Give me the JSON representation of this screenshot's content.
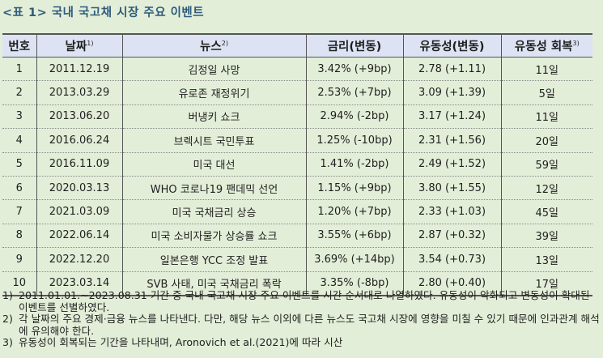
{
  "title": "<표 1> 국내 국고채 시장 주요 이벤트",
  "table": {
    "headers": [
      {
        "label": "번호",
        "sup": ""
      },
      {
        "label": "날짜",
        "sup": "1)"
      },
      {
        "label": "뉴스",
        "sup": "2)"
      },
      {
        "label": "금리(변동)",
        "sup": ""
      },
      {
        "label": "유동성(변동)",
        "sup": ""
      },
      {
        "label": "유동성 회복",
        "sup": "3)"
      }
    ],
    "rows": [
      {
        "no": "1",
        "date": "2011.12.19",
        "news": "김정일 사망",
        "rate": "3.42% (+9bp)",
        "liquidity": "2.78 (+1.11)",
        "recovery": "11일"
      },
      {
        "no": "2",
        "date": "2013.03.29",
        "news": "유로존 재정위기",
        "rate": "2.53% (+7bp)",
        "liquidity": "3.09 (+1.39)",
        "recovery": "5일"
      },
      {
        "no": "3",
        "date": "2013.06.20",
        "news": "버냉키 쇼크",
        "rate": "2.94% (-2bp)",
        "liquidity": "3.17 (+1.24)",
        "recovery": "11일"
      },
      {
        "no": "4",
        "date": "2016.06.24",
        "news": "브렉시트 국민투표",
        "rate": "1.25% (-10bp)",
        "liquidity": "2.31 (+1.56)",
        "recovery": "20일"
      },
      {
        "no": "5",
        "date": "2016.11.09",
        "news": "미국 대선",
        "rate": "1.41% (-2bp)",
        "liquidity": "2.49 (+1.52)",
        "recovery": "59일"
      },
      {
        "no": "6",
        "date": "2020.03.13",
        "news": "WHO 코로나19 팬데믹 선언",
        "rate": "1.15% (+9bp)",
        "liquidity": "3.80 (+1.55)",
        "recovery": "12일"
      },
      {
        "no": "7",
        "date": "2021.03.09",
        "news": "미국 국채금리 상승",
        "rate": "1.20% (+7bp)",
        "liquidity": "2.33 (+1.03)",
        "recovery": "45일"
      },
      {
        "no": "8",
        "date": "2022.06.14",
        "news": "미국 소비자물가 상승률 쇼크",
        "rate": "3.55% (+6bp)",
        "liquidity": "2.87 (+0.32)",
        "recovery": "39일"
      },
      {
        "no": "9",
        "date": "2022.12.20",
        "news": "일본은행 YCC 조정 발표",
        "rate": "3.69% (+14bp)",
        "liquidity": "3.54 (+0.73)",
        "recovery": "13일"
      },
      {
        "no": "10",
        "date": "2023.03.14",
        "news": "SVB 사태, 미국 국채금리 폭락",
        "rate": "3.35% (-8bp)",
        "liquidity": "2.80 (+0.40)",
        "recovery": "17일"
      }
    ]
  },
  "notes": [
    {
      "num": "1)",
      "text": "2011.01.01.~2023.08.31 기간 중 국내 국고채 시장 주요 이벤트를 시간 순서대로 나열하였다. 유동성이 악화되고 변동성이 확대된 이벤트를 선별하였다."
    },
    {
      "num": "2)",
      "text": "각 날짜의 주요 경제·금융 뉴스를 나타낸다. 다만, 해당 뉴스 이외에 다른 뉴스도 국고채 시장에 영향을 미칠 수 있기 때문에 인과관계 해석에 유의해야 한다."
    },
    {
      "num": "3)",
      "text": "유동성이 회복되는 기간을 나타내며, Aronovich et al.(2021)에 따라 시산"
    }
  ],
  "colors": {
    "background": "#e3eed8",
    "title": "#2e5b7c",
    "header_bg": "#dde3f3",
    "border": "#555555"
  }
}
